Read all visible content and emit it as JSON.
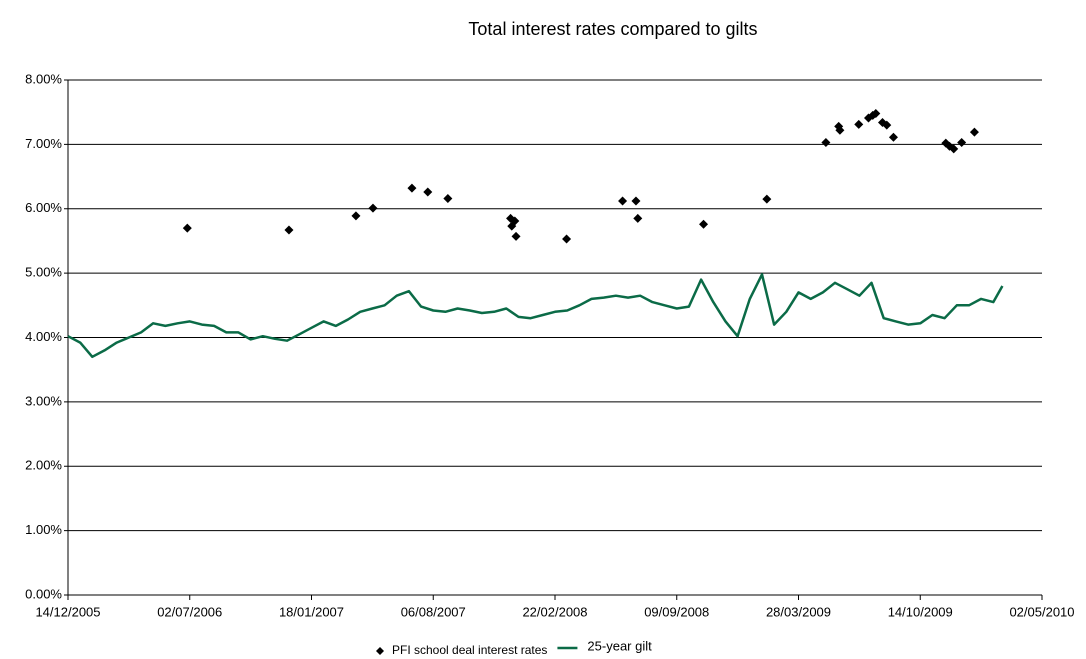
{
  "chart_data": {
    "type": "line",
    "title": "Total interest rates compared to gilts",
    "xlim": [
      "14/12/2005",
      "02/05/2010"
    ],
    "xticks": [
      "14/12/2005",
      "02/07/2006",
      "18/01/2007",
      "06/08/2007",
      "22/02/2008",
      "09/09/2008",
      "28/03/2009",
      "14/10/2009",
      "02/05/2010"
    ],
    "ylim": [
      0,
      8
    ],
    "yticks": [
      {
        "value": 0,
        "label": "0.00%"
      },
      {
        "value": 1,
        "label": "1.00%"
      },
      {
        "value": 2,
        "label": "2.00%"
      },
      {
        "value": 3,
        "label": "3.00%"
      },
      {
        "value": 4,
        "label": "4.00%"
      },
      {
        "value": 5,
        "label": "5.00%"
      },
      {
        "value": 6,
        "label": "6.00%"
      },
      {
        "value": 7,
        "label": "7.00%"
      },
      {
        "value": 8,
        "label": "8.00%"
      }
    ],
    "grid": true,
    "legend": "bottom",
    "series": [
      {
        "name": "PFI school deal interest rates",
        "type": "scatter",
        "color": "#000000",
        "x": [
          "28/06/2006",
          "12/12/2006",
          "01/04/2007",
          "29/04/2007",
          "02/07/2007",
          "28/07/2007",
          "30/08/2007",
          "11/12/2007",
          "13/12/2007",
          "18/12/2007",
          "20/12/2007",
          "12/03/2008",
          "12/06/2008",
          "04/07/2008",
          "07/07/2008",
          "23/10/2008",
          "04/02/2009",
          "12/05/2009",
          "02/06/2009",
          "04/06/2009",
          "05/07/2009",
          "21/07/2009",
          "28/07/2009",
          "02/08/2009",
          "13/08/2009",
          "20/08/2009",
          "31/08/2009",
          "25/11/2009",
          "01/12/2009",
          "08/12/2009",
          "21/12/2009",
          "11/01/2010"
        ],
        "values": [
          5.7,
          5.67,
          5.89,
          6.01,
          6.32,
          6.26,
          6.16,
          5.85,
          5.73,
          5.81,
          5.57,
          5.53,
          6.12,
          6.12,
          5.85,
          5.76,
          6.15,
          7.03,
          7.28,
          7.22,
          7.31,
          7.41,
          7.45,
          7.48,
          7.34,
          7.3,
          7.11,
          7.02,
          6.97,
          6.93,
          7.03,
          7.19
        ]
      },
      {
        "name": "25-year gilt",
        "type": "line",
        "color": "#0b6b47",
        "x": [
          "14/12/2005",
          "03/01/2006",
          "23/01/2006",
          "12/02/2006",
          "04/03/2006",
          "24/03/2006",
          "13/04/2006",
          "03/05/2006",
          "23/05/2006",
          "12/06/2006",
          "02/07/2006",
          "22/07/2006",
          "11/08/2006",
          "31/08/2006",
          "20/09/2006",
          "10/10/2006",
          "30/10/2006",
          "19/11/2006",
          "09/12/2006",
          "29/12/2006",
          "18/01/2007",
          "07/02/2007",
          "27/02/2007",
          "19/03/2007",
          "08/04/2007",
          "28/04/2007",
          "18/05/2007",
          "07/06/2007",
          "27/06/2007",
          "17/07/2007",
          "06/08/2007",
          "26/08/2007",
          "15/09/2007",
          "05/10/2007",
          "25/10/2007",
          "14/11/2007",
          "04/12/2007",
          "24/12/2007",
          "13/01/2008",
          "02/02/2008",
          "22/02/2008",
          "13/03/2008",
          "02/04/2008",
          "22/04/2008",
          "12/05/2008",
          "01/06/2008",
          "21/06/2008",
          "11/07/2008",
          "31/07/2008",
          "20/08/2008",
          "09/09/2008",
          "29/09/2008",
          "19/10/2008",
          "08/11/2008",
          "28/11/2008",
          "18/12/2008",
          "07/01/2009",
          "27/01/2009",
          "16/02/2009",
          "08/03/2009",
          "28/03/2009",
          "17/04/2009",
          "07/05/2009",
          "27/05/2009",
          "16/06/2009",
          "06/07/2009",
          "26/07/2009",
          "15/08/2009",
          "04/09/2009",
          "24/09/2009",
          "14/10/2009",
          "03/11/2009",
          "23/11/2009",
          "13/12/2009",
          "02/01/2010",
          "22/01/2010",
          "11/02/2010",
          "26/02/2010"
        ],
        "values": [
          4.02,
          3.92,
          3.7,
          3.8,
          3.92,
          4.0,
          4.08,
          4.22,
          4.18,
          4.22,
          4.25,
          4.2,
          4.18,
          4.08,
          4.08,
          3.97,
          4.02,
          3.98,
          3.95,
          4.05,
          4.15,
          4.25,
          4.18,
          4.28,
          4.4,
          4.45,
          4.5,
          4.65,
          4.72,
          4.48,
          4.42,
          4.4,
          4.45,
          4.42,
          4.38,
          4.4,
          4.45,
          4.32,
          4.3,
          4.35,
          4.4,
          4.42,
          4.5,
          4.6,
          4.62,
          4.65,
          4.62,
          4.65,
          4.55,
          4.5,
          4.45,
          4.48,
          4.9,
          4.55,
          4.25,
          4.02,
          4.6,
          4.98,
          4.2,
          4.4,
          4.7,
          4.6,
          4.7,
          4.85,
          4.75,
          4.65,
          4.85,
          4.3,
          4.25,
          4.2,
          4.22,
          4.35,
          4.3,
          4.5,
          4.5,
          4.6,
          4.55,
          4.8
        ]
      }
    ]
  }
}
